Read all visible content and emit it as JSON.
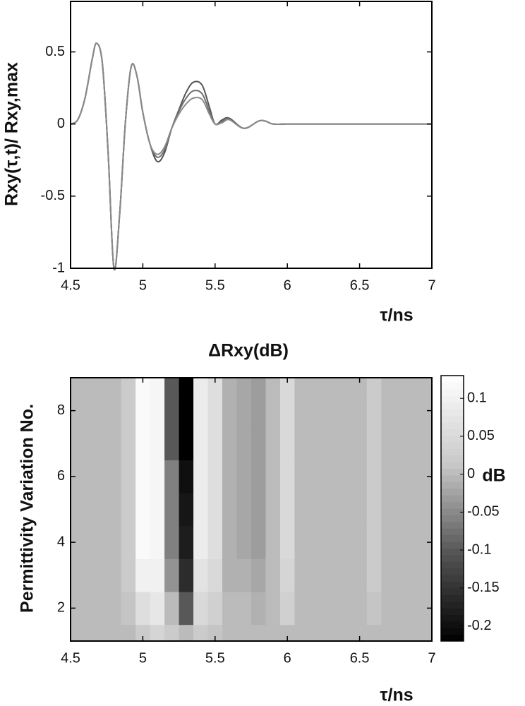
{
  "chart_data": [
    {
      "type": "line",
      "ylabel": "Rxy(τ,t)/ Rxy,max",
      "xlabel": "τ/ns",
      "x": [
        4.5,
        4.55,
        4.6,
        4.65,
        4.68,
        4.72,
        4.76,
        4.8,
        4.84,
        4.88,
        4.92,
        4.96,
        5.0,
        5.05,
        5.1,
        5.15,
        5.2,
        5.25,
        5.3,
        5.35,
        5.41,
        5.46,
        5.5,
        5.55,
        5.6,
        5.7,
        5.8,
        5.85,
        5.9,
        6.0,
        6.2,
        6.5,
        7.0
      ],
      "series": [
        {
          "color": "#555555",
          "values": [
            0,
            0.03,
            0.18,
            0.45,
            0.56,
            0.42,
            -0.2,
            -1,
            -0.62,
            0.02,
            0.4,
            0.33,
            0.08,
            -0.14,
            -0.26,
            -0.2,
            -0.03,
            0.1,
            0.22,
            0.29,
            0.27,
            0.12,
            0,
            0.03,
            0.04,
            -0.03,
            0.02,
            0.02,
            0,
            0,
            0,
            0,
            0
          ]
        },
        {
          "color": "#6e6e6e",
          "values": [
            0,
            0.03,
            0.18,
            0.45,
            0.56,
            0.42,
            -0.2,
            -1,
            -0.62,
            0.02,
            0.4,
            0.33,
            0.08,
            -0.14,
            -0.23,
            -0.18,
            -0.03,
            0.09,
            0.18,
            0.23,
            0.21,
            0.09,
            0,
            0.02,
            0.03,
            -0.03,
            0.02,
            0.02,
            0,
            0,
            0,
            0,
            0
          ]
        },
        {
          "color": "#8a8a8a",
          "values": [
            0,
            0.03,
            0.18,
            0.45,
            0.56,
            0.42,
            -0.2,
            -1,
            -0.62,
            0.02,
            0.4,
            0.33,
            0.08,
            -0.14,
            -0.21,
            -0.16,
            -0.03,
            0.07,
            0.14,
            0.18,
            0.17,
            0.07,
            0,
            0.01,
            0.03,
            -0.03,
            0.02,
            0.02,
            0,
            0,
            0,
            0,
            0
          ]
        }
      ],
      "xlim": [
        4.5,
        7
      ],
      "ylim": [
        -1,
        0.85
      ],
      "xticks": [
        4.5,
        5,
        5.5,
        6,
        6.5,
        7
      ],
      "yticks": [
        0.5,
        0,
        -0.5,
        -1
      ]
    },
    {
      "type": "contour",
      "title": "ΔRxy(dB)",
      "ylabel": "Permittivity Variation No.",
      "xlabel": "τ/ns",
      "x": [
        4.5,
        4.6,
        4.7,
        4.8,
        4.9,
        5.0,
        5.1,
        5.2,
        5.3,
        5.4,
        5.5,
        5.6,
        5.7,
        5.8,
        5.9,
        6.0,
        6.1,
        6.2,
        6.3,
        6.4,
        6.5,
        6.6,
        6.7,
        6.8,
        6.9,
        7.0
      ],
      "y": [
        1,
        2,
        3,
        4,
        5,
        6,
        7,
        8,
        9
      ],
      "z": [
        [
          0,
          0,
          0,
          0,
          0,
          0.02,
          0.04,
          0.02,
          0,
          0.02,
          0.01,
          0,
          0,
          0,
          0,
          0,
          0,
          0,
          0,
          0,
          0,
          0,
          0,
          0,
          0,
          0
        ],
        [
          0,
          0,
          0,
          0,
          0.01,
          0.06,
          0.08,
          0,
          -0.1,
          0.05,
          0.03,
          0,
          0,
          -0.01,
          0,
          0.03,
          0,
          0,
          0,
          0,
          0,
          0.01,
          0,
          0,
          0,
          0
        ],
        [
          0,
          0,
          0,
          0,
          0.02,
          0.1,
          0.1,
          -0.04,
          -0.16,
          0.07,
          0.05,
          -0.01,
          -0.01,
          -0.02,
          0,
          0.04,
          0,
          0,
          0,
          0,
          0,
          0.02,
          0,
          0,
          0,
          0
        ],
        [
          0,
          0,
          0,
          0,
          0.02,
          0.12,
          0.11,
          -0.06,
          -0.18,
          0.09,
          0.06,
          -0.01,
          -0.02,
          -0.03,
          0,
          0.05,
          0,
          0,
          0,
          0,
          0,
          0.02,
          0,
          0,
          0,
          0
        ],
        [
          0,
          0,
          0,
          0,
          0.02,
          0.12,
          0.11,
          -0.06,
          -0.19,
          0.09,
          0.06,
          -0.01,
          -0.02,
          -0.03,
          0,
          0.05,
          0,
          0,
          0,
          0,
          0,
          0.02,
          0,
          0,
          0,
          0
        ],
        [
          0,
          0,
          0,
          0,
          0.02,
          0.12,
          0.11,
          -0.06,
          -0.2,
          0.09,
          0.06,
          -0.01,
          -0.02,
          -0.03,
          0,
          0.05,
          0,
          0,
          0,
          0,
          0,
          0.02,
          0,
          0,
          0,
          0
        ],
        [
          0,
          0,
          0,
          0,
          0.02,
          0.12,
          0.11,
          -0.1,
          -0.22,
          0.09,
          0.06,
          -0.01,
          -0.02,
          -0.03,
          0,
          0.05,
          0,
          0,
          0,
          0,
          0,
          0.02,
          0,
          0,
          0,
          0
        ],
        [
          0,
          0,
          0,
          0,
          0.02,
          0.12,
          0.11,
          -0.1,
          -0.22,
          0.09,
          0.06,
          -0.01,
          -0.02,
          -0.03,
          0,
          0.05,
          0,
          0,
          0,
          0,
          0,
          0.02,
          0,
          0,
          0,
          0
        ],
        [
          0,
          0,
          0,
          0,
          0.02,
          0.12,
          0.11,
          -0.1,
          -0.22,
          0.09,
          0.06,
          -0.01,
          -0.02,
          -0.03,
          0,
          0.05,
          0,
          0,
          0,
          0,
          0,
          0.02,
          0,
          0,
          0,
          0
        ]
      ],
      "xlim": [
        4.5,
        7
      ],
      "ylim": [
        1,
        9
      ],
      "xticks": [
        4.5,
        5,
        5.5,
        6,
        6.5,
        7
      ],
      "yticks": [
        2,
        4,
        6,
        8
      ],
      "colorbar": {
        "label": "dB",
        "clim": [
          -0.22,
          0.13
        ],
        "ticks": [
          0.1,
          0.05,
          0,
          -0.05,
          -0.1,
          -0.15,
          -0.2
        ],
        "colormap": [
          "#000000",
          "#555555",
          "#c8c8c8",
          "#ffffff"
        ]
      }
    }
  ]
}
